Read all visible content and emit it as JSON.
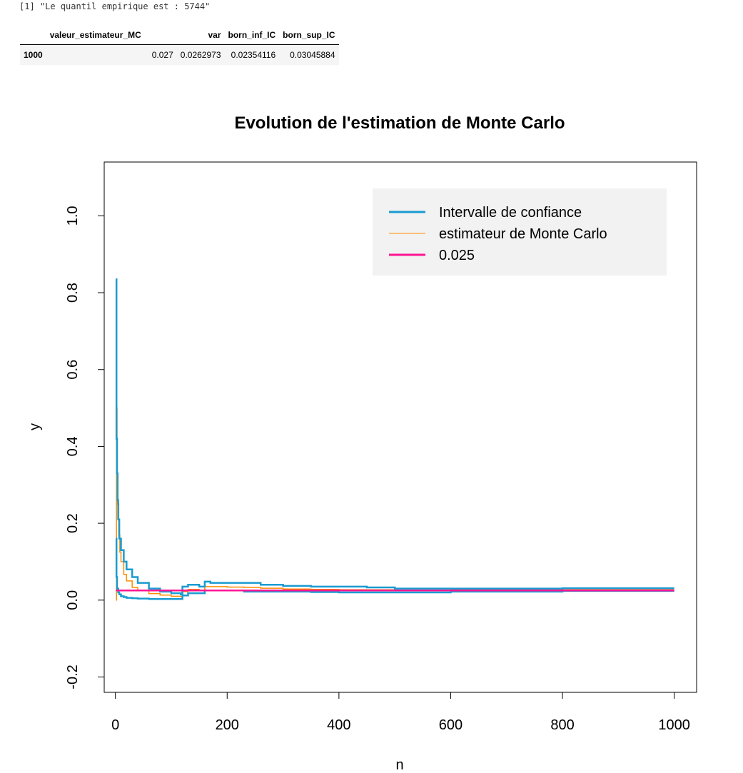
{
  "console": {
    "line": "[1] \"Le quantil empirique est : 5744\""
  },
  "table": {
    "columns": [
      "",
      "valeur_estimateur_MC",
      "var",
      "born_inf_IC",
      "born_sup_IC"
    ],
    "rows": [
      {
        "name": "1000",
        "valeur_estimateur_MC": "0.027",
        "var": "0.0262973",
        "born_inf_IC": "0.02354116",
        "born_sup_IC": "0.03045884"
      }
    ]
  },
  "chart_data": {
    "type": "line",
    "title": "Evolution de l'estimation de Monte Carlo",
    "xlabel": "n",
    "ylabel": "y",
    "xlim": [
      -20,
      1040
    ],
    "ylim": [
      -0.24,
      1.14
    ],
    "xticks": [
      "0",
      "200",
      "400",
      "600",
      "800",
      "1000"
    ],
    "yticks": [
      "-0.2",
      "0.0",
      "0.2",
      "0.4",
      "0.6",
      "0.8",
      "1.0"
    ],
    "legend": {
      "placement": "top-right",
      "background": "#f2f2f2"
    },
    "colors": {
      "ic": "#1a9bd1",
      "mc": "#ff8c00",
      "ref": "#ff1493"
    },
    "series": [
      {
        "name": "Intervalle de confiance (borne sup)",
        "legend": "Intervalle de confiance",
        "color": "#1a9bd1",
        "x": [
          1,
          2,
          3,
          4,
          5,
          7,
          10,
          15,
          20,
          30,
          40,
          60,
          80,
          100,
          117,
          120,
          130,
          150,
          160,
          170,
          200,
          230,
          260,
          300,
          350,
          400,
          450,
          500,
          600,
          700,
          800,
          900,
          1000
        ],
        "y": [
          0.835,
          0.42,
          0.33,
          0.26,
          0.21,
          0.16,
          0.13,
          0.1,
          0.08,
          0.06,
          0.045,
          0.03,
          0.022,
          0.018,
          0.015,
          0.035,
          0.04,
          0.035,
          0.048,
          0.045,
          0.045,
          0.045,
          0.04,
          0.037,
          0.035,
          0.035,
          0.033,
          0.03,
          0.03,
          0.03,
          0.031,
          0.031,
          0.031
        ]
      },
      {
        "name": "Intervalle de confiance (borne inf)",
        "legend": "",
        "color": "#1a9bd1",
        "x": [
          1,
          2,
          3,
          5,
          7,
          10,
          15,
          20,
          30,
          40,
          60,
          80,
          100,
          117,
          120,
          130,
          150,
          160,
          170,
          200,
          230,
          260,
          300,
          350,
          400,
          450,
          500,
          600,
          700,
          800,
          900,
          1000
        ],
        "y": [
          0.16,
          0.06,
          0.03,
          0.02,
          0.015,
          0.01,
          0.008,
          0.006,
          0.005,
          0.004,
          0.003,
          0.003,
          0.003,
          0.003,
          0.012,
          0.018,
          0.018,
          0.025,
          0.025,
          0.025,
          0.022,
          0.022,
          0.022,
          0.021,
          0.02,
          0.02,
          0.02,
          0.022,
          0.022,
          0.024,
          0.024,
          0.024
        ]
      },
      {
        "name": "estimateur de Monte Carlo",
        "legend": "estimateur de Monte Carlo",
        "color": "#ff8c00",
        "x": [
          1,
          2,
          3,
          4,
          6,
          8,
          10,
          15,
          20,
          30,
          40,
          60,
          80,
          100,
          117,
          120,
          130,
          150,
          160,
          170,
          200,
          230,
          260,
          300,
          350,
          400,
          450,
          500,
          600,
          700,
          800,
          900,
          1000
        ],
        "y": [
          0.0,
          0.5,
          0.33,
          0.25,
          0.17,
          0.125,
          0.1,
          0.067,
          0.05,
          0.033,
          0.025,
          0.017,
          0.013,
          0.01,
          0.009,
          0.022,
          0.028,
          0.026,
          0.035,
          0.035,
          0.034,
          0.033,
          0.031,
          0.029,
          0.028,
          0.027,
          0.027,
          0.026,
          0.027,
          0.027,
          0.027,
          0.027,
          0.027
        ]
      },
      {
        "name": "0.025",
        "legend": "0.025",
        "color": "#ff1493",
        "x": [
          1,
          1000
        ],
        "y": [
          0.025,
          0.025
        ]
      }
    ]
  }
}
